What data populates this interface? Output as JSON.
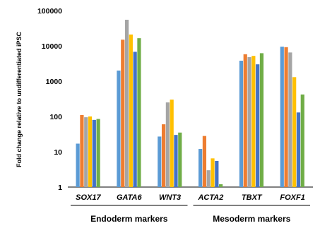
{
  "chart_data": {
    "type": "bar",
    "log_scale": true,
    "ylim": [
      1,
      100000
    ],
    "ylabel": "Fold change relative to undifferentiated iPSC",
    "y_ticks": [
      1,
      10,
      100,
      1000,
      10000,
      100000
    ],
    "y_tick_labels": [
      "1",
      "10",
      "100",
      "1000",
      "10000",
      "100000"
    ],
    "grid": false,
    "legend": "none",
    "categories": [
      "SOX17",
      "GATA6",
      "WNT3",
      "ACTA2",
      "TBXT",
      "FOXF1"
    ],
    "groups": [
      {
        "label": "Endoderm markers",
        "categories": [
          "SOX17",
          "GATA6",
          "WNT3"
        ]
      },
      {
        "label": "Mesoderm markers",
        "categories": [
          "ACTA2",
          "TBXT",
          "FOXF1"
        ]
      }
    ],
    "series": [
      {
        "color": "#5B9BD5",
        "values": [
          17,
          2000,
          27,
          12,
          3800,
          9500
        ]
      },
      {
        "color": "#ED7D31",
        "values": [
          110,
          15000,
          60,
          28,
          5800,
          9200
        ]
      },
      {
        "color": "#A5A5A5",
        "values": [
          95,
          55000,
          250,
          3,
          4800,
          6500
        ]
      },
      {
        "color": "#FFC000",
        "values": [
          100,
          21000,
          300,
          6.5,
          5200,
          1300
        ]
      },
      {
        "color": "#4472C4",
        "values": [
          80,
          6800,
          30,
          5.5,
          3000,
          130
        ]
      },
      {
        "color": "#70AD47",
        "values": [
          85,
          16500,
          35,
          1.2,
          6200,
          420
        ]
      }
    ]
  }
}
